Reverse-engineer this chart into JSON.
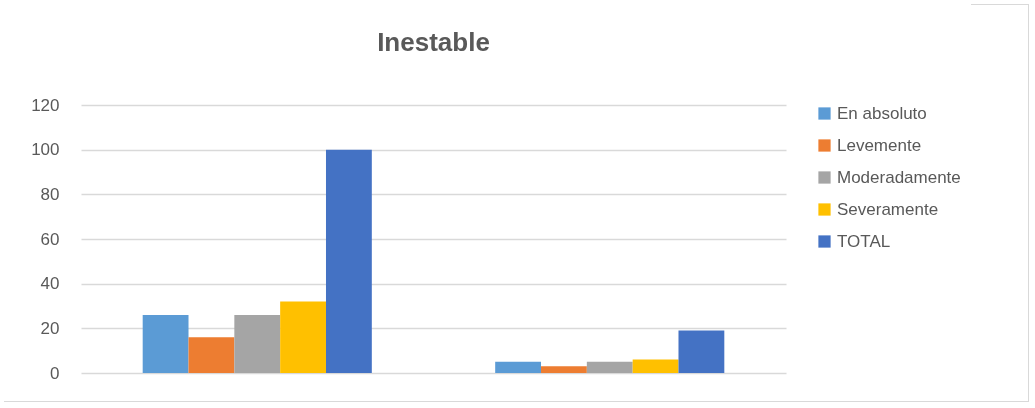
{
  "chart_data": {
    "type": "bar",
    "title": "Inestable",
    "categories": [
      null,
      null
    ],
    "series": [
      {
        "name": "En absoluto",
        "color": "#5b9bd5",
        "values": [
          26,
          5
        ]
      },
      {
        "name": "Levemente",
        "color": "#ed7d31",
        "values": [
          16,
          3
        ]
      },
      {
        "name": "Moderadamente",
        "color": "#a5a5a5",
        "values": [
          26,
          5
        ]
      },
      {
        "name": "Severamente",
        "color": "#ffc000",
        "values": [
          32,
          6
        ]
      },
      {
        "name": "TOTAL",
        "color": "#4472c4",
        "values": [
          100,
          19
        ]
      }
    ],
    "ylim": [
      0,
      120
    ],
    "yticks": [
      0,
      20,
      40,
      60,
      80,
      100,
      120
    ],
    "grid": "y",
    "legend": "right"
  }
}
